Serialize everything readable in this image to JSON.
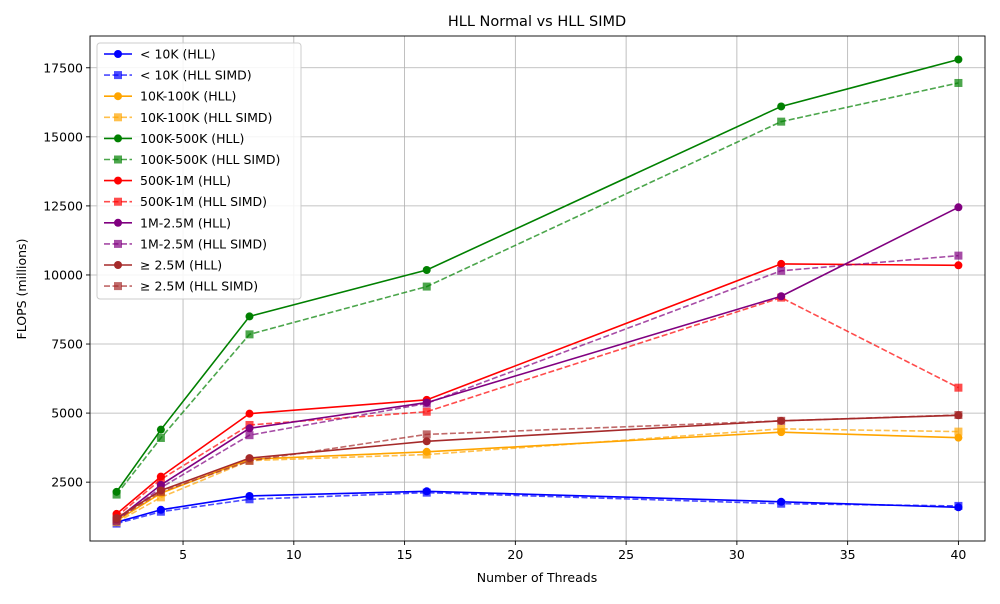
{
  "chart_data": {
    "type": "line",
    "title": "HLL Normal vs HLL SIMD",
    "xlabel": "Number of Threads",
    "ylabel": "FLOPS (millions)",
    "x": [
      2,
      4,
      8,
      16,
      32,
      40
    ],
    "xlim": [
      0.8,
      41.2
    ],
    "ylim": [
      370,
      18650
    ],
    "xticks": [
      5,
      10,
      15,
      20,
      25,
      30,
      35,
      40
    ],
    "yticks": [
      2500,
      5000,
      7500,
      10000,
      12500,
      15000,
      17500
    ],
    "grid": true,
    "legend_position": "top-left",
    "series": [
      {
        "name": "< 10K (HLL)",
        "color": "#0000ff",
        "dashed": false,
        "marker": "circle",
        "opacity": 1.0,
        "values": [
          1050,
          1500,
          2000,
          2170,
          1790,
          1590
        ]
      },
      {
        "name": "< 10K (HLL SIMD)",
        "color": "#0000ff",
        "dashed": true,
        "marker": "square",
        "opacity": 0.7,
        "values": [
          1000,
          1430,
          1880,
          2120,
          1720,
          1640
        ]
      },
      {
        "name": "10K-100K (HLL)",
        "color": "#ffa500",
        "dashed": false,
        "marker": "circle",
        "opacity": 1.0,
        "values": [
          1100,
          2100,
          3330,
          3600,
          4310,
          4110
        ]
      },
      {
        "name": "10K-100K (HLL SIMD)",
        "color": "#ffa500",
        "dashed": true,
        "marker": "square",
        "opacity": 0.7,
        "values": [
          1050,
          1950,
          3280,
          3500,
          4430,
          4330
        ]
      },
      {
        "name": "100K-500K (HLL)",
        "color": "#008000",
        "dashed": false,
        "marker": "circle",
        "opacity": 1.0,
        "values": [
          2150,
          4400,
          8500,
          10180,
          16100,
          17800
        ]
      },
      {
        "name": "100K-500K (HLL SIMD)",
        "color": "#008000",
        "dashed": true,
        "marker": "square",
        "opacity": 0.7,
        "values": [
          2050,
          4100,
          7850,
          9580,
          15550,
          16950
        ]
      },
      {
        "name": "500K-1M (HLL)",
        "color": "#ff0000",
        "dashed": false,
        "marker": "circle",
        "opacity": 1.0,
        "values": [
          1350,
          2700,
          4980,
          5480,
          10400,
          10350
        ]
      },
      {
        "name": "500K-1M (HLL SIMD)",
        "color": "#ff0000",
        "dashed": true,
        "marker": "square",
        "opacity": 0.7,
        "values": [
          1250,
          2600,
          4570,
          5050,
          9180,
          5920
        ]
      },
      {
        "name": "1M-2.5M (HLL)",
        "color": "#800080",
        "dashed": false,
        "marker": "circle",
        "opacity": 1.0,
        "values": [
          1150,
          2400,
          4450,
          5380,
          9230,
          12450
        ]
      },
      {
        "name": "1M-2.5M (HLL SIMD)",
        "color": "#800080",
        "dashed": true,
        "marker": "square",
        "opacity": 0.7,
        "values": [
          1100,
          2300,
          4200,
          5350,
          10150,
          10700
        ]
      },
      {
        "name": "≥ 2.5M (HLL)",
        "color": "#a52a2a",
        "dashed": false,
        "marker": "circle",
        "opacity": 1.0,
        "values": [
          1200,
          2200,
          3370,
          3980,
          4720,
          4920
        ]
      },
      {
        "name": "≥ 2.5M (HLL SIMD)",
        "color": "#a52a2a",
        "dashed": true,
        "marker": "square",
        "opacity": 0.7,
        "values": [
          1150,
          2150,
          3270,
          4230,
          4720,
          4930
        ]
      }
    ]
  }
}
